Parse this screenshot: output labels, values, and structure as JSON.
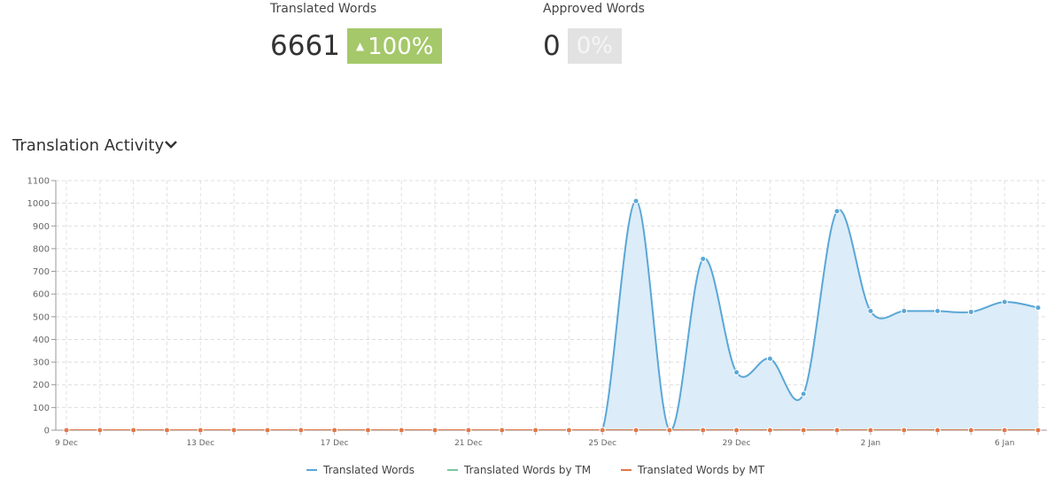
{
  "stats": [
    {
      "label": "Translated Words",
      "value": "6661",
      "change": "100%"
    },
    {
      "label": "Approved Words",
      "value": "0",
      "change": "0%"
    }
  ],
  "chart_data": {
    "type": "line",
    "title": "Translation Activity",
    "categories": [
      "9 Dec",
      null,
      null,
      null,
      "13 Dec",
      null,
      null,
      null,
      "17 Dec",
      null,
      null,
      null,
      "21 Dec",
      null,
      null,
      null,
      "25 Dec",
      null,
      null,
      null,
      "29 Dec",
      null,
      null,
      null,
      "2 Jan",
      null,
      null,
      null,
      "6 Jan",
      null
    ],
    "series": [
      {
        "name": "Translated Words",
        "color": "#5aa7d6",
        "values": [
          0,
          0,
          0,
          0,
          0,
          0,
          0,
          0,
          0,
          0,
          0,
          0,
          0,
          0,
          0,
          0,
          0,
          1010,
          0,
          755,
          255,
          315,
          160,
          965,
          525,
          525,
          525,
          521,
          565,
          540
        ]
      },
      {
        "name": "Translated Words by TM",
        "color": "#7cc7a0",
        "values": [
          0,
          0,
          0,
          0,
          0,
          0,
          0,
          0,
          0,
          0,
          0,
          0,
          0,
          0,
          0,
          0,
          0,
          0,
          0,
          0,
          0,
          0,
          0,
          0,
          0,
          0,
          0,
          0,
          0,
          0
        ]
      },
      {
        "name": "Translated Words by MT",
        "color": "#e0784a",
        "values": [
          0,
          0,
          0,
          0,
          0,
          0,
          0,
          0,
          0,
          0,
          0,
          0,
          0,
          0,
          0,
          0,
          0,
          0,
          0,
          0,
          0,
          0,
          0,
          0,
          0,
          0,
          0,
          0,
          0,
          0
        ]
      }
    ],
    "ylim": [
      0,
      1100
    ],
    "yticks": [
      0,
      100,
      200,
      300,
      400,
      500,
      600,
      700,
      800,
      900,
      1000,
      1100
    ],
    "grid": true
  }
}
